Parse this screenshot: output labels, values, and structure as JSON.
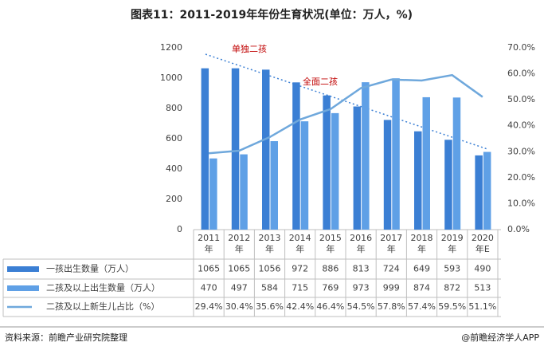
{
  "chart_data": {
    "type": "bar",
    "title": "图表11：2011-2019年年份生育状况(单位：万人，%)",
    "categories": [
      "2011年",
      "2012年",
      "2013年",
      "2014年",
      "2015年",
      "2016年",
      "2017年",
      "2018年",
      "2019年",
      "2020年E"
    ],
    "series": [
      {
        "name": "一孩出生数量（万人）",
        "color": "#3b7fd4",
        "values": [
          1065,
          1065,
          1056,
          972,
          886,
          813,
          724,
          649,
          593,
          490
        ]
      },
      {
        "name": "二孩及以上出生数量（万人）",
        "color": "#5fa0e6",
        "values": [
          470,
          497,
          584,
          715,
          769,
          973,
          999,
          874,
          872,
          513
        ]
      },
      {
        "name": "二孩及以上新生儿占比（%）",
        "color": "#6fa8dc",
        "type": "line",
        "axis": "y2",
        "values": [
          29.4,
          30.4,
          35.6,
          42.4,
          46.4,
          54.5,
          57.8,
          57.4,
          59.5,
          51.1
        ],
        "value_labels": [
          "29.4%",
          "30.4%",
          "35.6%",
          "42.4%",
          "46.4%",
          "54.5%",
          "57.8%",
          "57.4%",
          "59.5%",
          "51.1%"
        ]
      }
    ],
    "ylim": [
      0,
      1200
    ],
    "yticks": [
      0,
      200,
      400,
      600,
      800,
      1000,
      1200
    ],
    "y2lim": [
      0,
      70
    ],
    "y2ticks": [
      {
        "value": 0,
        "label": "0.0%"
      },
      {
        "value": 10,
        "label": "10.0%"
      },
      {
        "value": 20,
        "label": "20.0%"
      },
      {
        "value": 30,
        "label": "30.0%"
      },
      {
        "value": 40,
        "label": "40.0%"
      },
      {
        "value": 50,
        "label": "50.0%"
      },
      {
        "value": 60,
        "label": "60.0%"
      },
      {
        "value": 70,
        "label": "70.0%"
      }
    ],
    "annotations": [
      "单独二孩",
      "全面二孩"
    ],
    "source": "资料来源：前瞻产业研究院整理",
    "credit": "@前瞻经济学人APP"
  }
}
